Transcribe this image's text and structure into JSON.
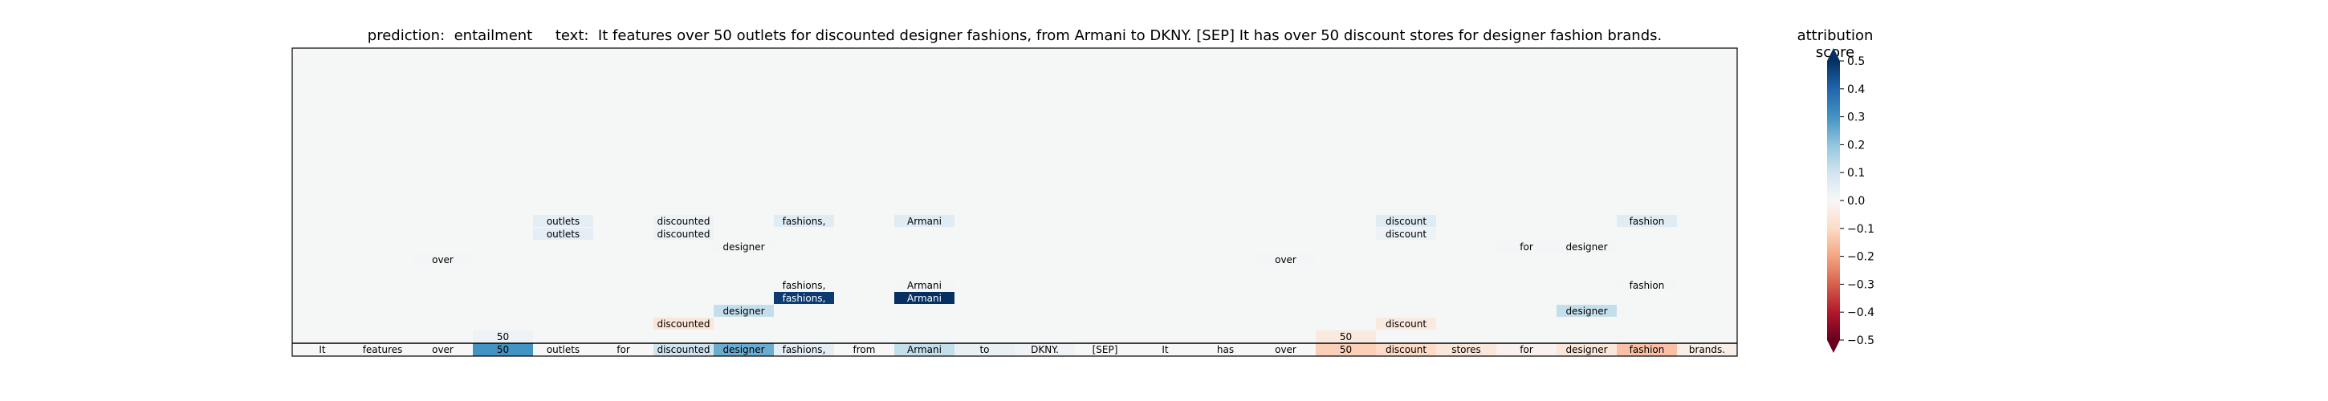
{
  "chart_data": {
    "type": "heatmap",
    "title_parts": {
      "prediction_label": "prediction:",
      "prediction": "entailment",
      "text_label": "text:",
      "text": "It features over 50 outlets for discounted designer fashions, from Armani to DKNY. [SEP] It has over 50 discount stores for designer fashion brands."
    },
    "tokens": [
      "It",
      "features",
      "over",
      "50",
      "outlets",
      "for",
      "discounted",
      "designer",
      "fashions,",
      "from",
      "Armani",
      "to",
      "DKNY.",
      "[SEP]",
      "It",
      "has",
      "over",
      "50",
      "discount",
      "stores",
      "for",
      "designer",
      "fashion",
      "brands."
    ],
    "token_scores": [
      0.0,
      0.0,
      0.0,
      0.3,
      0.0,
      0.0,
      0.1,
      0.25,
      0.05,
      0.0,
      0.12,
      0.04,
      0.02,
      0.0,
      0.0,
      0.0,
      0.0,
      -0.12,
      -0.1,
      -0.06,
      -0.02,
      -0.06,
      -0.15,
      -0.03
    ],
    "highlights": [
      {
        "row": 1,
        "col": 3,
        "text": "50",
        "score": 0.03
      },
      {
        "row": 1,
        "col": 17,
        "text": "50",
        "score": -0.05
      },
      {
        "row": 2,
        "col": 6,
        "text": "discounted",
        "score": -0.06
      },
      {
        "row": 2,
        "col": 18,
        "text": "discount",
        "score": -0.05
      },
      {
        "row": 3,
        "col": 7,
        "text": "designer",
        "score": 0.12
      },
      {
        "row": 3,
        "col": 21,
        "text": "designer",
        "score": 0.12
      },
      {
        "row": 4,
        "col": 8,
        "text": "fashions,",
        "score": 0.48
      },
      {
        "row": 4,
        "col": 10,
        "text": "Armani",
        "score": 0.5
      },
      {
        "row": 5,
        "col": 8,
        "text": "fashions,",
        "score": 0.01
      },
      {
        "row": 5,
        "col": 10,
        "text": "Armani",
        "score": 0.01
      },
      {
        "row": 5,
        "col": 22,
        "text": "fashion",
        "score": 0.01
      },
      {
        "row": 7,
        "col": 2,
        "text": "over",
        "score": 0.01
      },
      {
        "row": 7,
        "col": 16,
        "text": "over",
        "score": 0.01
      },
      {
        "row": 8,
        "col": 7,
        "text": "designer",
        "score": 0.01
      },
      {
        "row": 8,
        "col": 20,
        "text": "for",
        "score": 0.01
      },
      {
        "row": 8,
        "col": 21,
        "text": "designer",
        "score": 0.01
      },
      {
        "row": 9,
        "col": 4,
        "text": "outlets",
        "score": 0.05
      },
      {
        "row": 9,
        "col": 6,
        "text": "discounted",
        "score": 0.03
      },
      {
        "row": 9,
        "col": 18,
        "text": "discount",
        "score": 0.03
      },
      {
        "row": 10,
        "col": 4,
        "text": "outlets",
        "score": 0.05
      },
      {
        "row": 10,
        "col": 6,
        "text": "discounted",
        "score": 0.03
      },
      {
        "row": 10,
        "col": 8,
        "text": "fashions,",
        "score": 0.06
      },
      {
        "row": 10,
        "col": 10,
        "text": "Armani",
        "score": 0.06
      },
      {
        "row": 10,
        "col": 18,
        "text": "discount",
        "score": 0.06
      },
      {
        "row": 10,
        "col": 22,
        "text": "fashion",
        "score": 0.06
      }
    ],
    "colorbar": {
      "label": "attribution score",
      "ticks": [
        "0.5",
        "0.4",
        "0.3",
        "0.2",
        "0.1",
        "0.0",
        "−0.1",
        "−0.2",
        "−0.3",
        "−0.4",
        "−0.5"
      ],
      "tick_values": [
        0.5,
        0.4,
        0.3,
        0.2,
        0.1,
        0.0,
        -0.1,
        -0.2,
        -0.3,
        -0.4,
        -0.5
      ],
      "range": [
        -0.5,
        0.5
      ],
      "colormap": "RdBu"
    },
    "grid": false,
    "background_color": "#f5f7f6"
  }
}
